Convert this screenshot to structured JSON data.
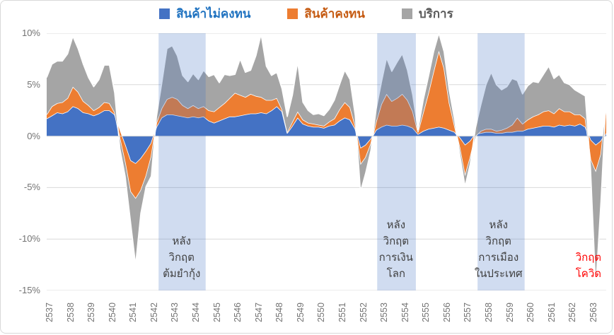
{
  "legend": {
    "items": [
      {
        "label": "สินค้าไม่คงทน",
        "swatch_color": "#4472C4",
        "text_color": "#1F72C0"
      },
      {
        "label": "สินค้าคงทน",
        "swatch_color": "#ED7D31",
        "text_color": "#C55A11"
      },
      {
        "label": "บริการ",
        "swatch_color": "#A5A5A5",
        "text_color": "#595959"
      }
    ]
  },
  "chart_data": {
    "type": "area",
    "stacked": true,
    "frequency": "quarterly",
    "x_start_year_be": 2537,
    "x_end_year_be": 2563,
    "categories": [
      "2537",
      "2538",
      "2539",
      "2540",
      "2541",
      "2542",
      "2543",
      "2544",
      "2545",
      "2546",
      "2547",
      "2548",
      "2549",
      "2550",
      "2551",
      "2552",
      "2553",
      "2554",
      "2555",
      "2556",
      "2557",
      "2558",
      "2559",
      "2560",
      "2561",
      "2562",
      "2563"
    ],
    "ylim": [
      -15,
      10
    ],
    "yticks": [
      {
        "label": "10%",
        "value": 10
      },
      {
        "label": "5%",
        "value": 5
      },
      {
        "label": "0%",
        "value": 0
      },
      {
        "label": "-5%",
        "value": -5
      },
      {
        "label": "-10%",
        "value": -10
      },
      {
        "label": "-15%",
        "value": -15
      }
    ],
    "grid": true,
    "legend_position": "top-center",
    "series": [
      {
        "name": "สินค้าไม่คงทน",
        "color": "#4472C4",
        "values": [
          1.7,
          2.0,
          2.3,
          2.2,
          2.4,
          2.9,
          2.7,
          2.3,
          2.2,
          2.0,
          2.2,
          2.5,
          2.5,
          2.1,
          0.5,
          -0.9,
          -2.4,
          -2.7,
          -2.2,
          -1.5,
          -0.7,
          0.9,
          1.8,
          2.1,
          2.1,
          2.0,
          1.9,
          1.8,
          1.9,
          1.8,
          1.9,
          1.5,
          1.3,
          1.5,
          1.7,
          1.9,
          1.9,
          2.0,
          2.1,
          2.2,
          2.2,
          2.3,
          2.2,
          2.5,
          2.9,
          2.4,
          0.3,
          1.0,
          1.8,
          1.2,
          1.0,
          0.9,
          0.9,
          0.8,
          1.0,
          1.1,
          1.5,
          1.8,
          1.6,
          0.7,
          -1.2,
          -0.9,
          -0.3,
          0.6,
          0.9,
          1.1,
          1.0,
          1.0,
          1.1,
          1.0,
          0.8,
          0.2,
          0.5,
          0.7,
          0.8,
          0.9,
          0.8,
          0.6,
          0.4,
          -0.2,
          -0.9,
          -0.5,
          0.2,
          0.3,
          0.4,
          0.4,
          0.3,
          0.3,
          0.4,
          0.4,
          0.5,
          0.5,
          0.7,
          0.8,
          0.9,
          1.0,
          1.0,
          0.9,
          1.1,
          1.0,
          1.1,
          1.0,
          1.2,
          0.9,
          -0.4,
          -0.9,
          -0.5,
          0.3
        ]
      },
      {
        "name": "สินค้าคงทน",
        "color": "#ED7D31",
        "values": [
          0.4,
          0.9,
          0.9,
          1.1,
          1.3,
          1.9,
          1.6,
          1.1,
          0.8,
          0.5,
          0.6,
          0.8,
          0.7,
          0.2,
          -0.8,
          -1.7,
          -3.0,
          -3.4,
          -3.1,
          -2.4,
          -1.3,
          0.4,
          0.9,
          1.5,
          1.7,
          1.6,
          1.1,
          0.9,
          1.1,
          0.9,
          1.0,
          1.0,
          1.1,
          1.3,
          1.5,
          1.8,
          2.3,
          2.0,
          1.7,
          1.9,
          1.7,
          1.5,
          1.3,
          1.0,
          0.8,
          0.2,
          0.1,
          0.4,
          0.6,
          0.4,
          0.3,
          0.3,
          0.2,
          0.2,
          0.4,
          0.6,
          1.1,
          1.5,
          1.2,
          0.3,
          -1.6,
          -1.2,
          -0.5,
          0.8,
          2.2,
          3.0,
          2.4,
          2.7,
          3.0,
          2.5,
          1.6,
          0.2,
          1.8,
          3.5,
          5.5,
          7.4,
          5.8,
          2.6,
          0.6,
          -1.0,
          -3.0,
          -1.6,
          -0.2,
          0.2,
          0.3,
          0.3,
          0.2,
          0.3,
          0.4,
          0.7,
          1.3,
          0.7,
          0.9,
          1.1,
          1.2,
          1.4,
          1.5,
          1.3,
          1.6,
          1.4,
          1.3,
          1.1,
          0.9,
          0.8,
          -1.9,
          -2.6,
          -1.3,
          2.5
        ]
      },
      {
        "name": "บริการ",
        "color": "#A5A5A5",
        "values": [
          3.6,
          4.1,
          4.1,
          4.0,
          4.3,
          4.9,
          4.2,
          3.6,
          2.7,
          2.3,
          2.7,
          3.6,
          3.7,
          1.9,
          -0.9,
          -1.3,
          -2.8,
          -6.4,
          -2.2,
          -1.0,
          -1.9,
          0.6,
          2.4,
          4.9,
          5.0,
          4.2,
          2.9,
          2.6,
          3.1,
          2.8,
          3.5,
          3.3,
          3.6,
          2.4,
          2.8,
          2.2,
          1.8,
          3.5,
          2.4,
          2.3,
          3.9,
          6.1,
          3.3,
          2.4,
          2.5,
          2.0,
          1.5,
          2.6,
          4.8,
          1.7,
          1.2,
          0.9,
          1.1,
          1.0,
          1.2,
          1.8,
          2.4,
          3.1,
          2.7,
          1.0,
          -2.6,
          -1.5,
          -0.6,
          1.2,
          2.1,
          3.5,
          2.9,
          3.5,
          3.9,
          2.9,
          1.6,
          0.2,
          1.2,
          1.6,
          1.9,
          1.7,
          1.6,
          1.2,
          0.6,
          -0.6,
          -1.0,
          -0.6,
          0.8,
          2.5,
          4.3,
          5.5,
          4.5,
          3.9,
          4.0,
          4.5,
          3.6,
          2.9,
          3.3,
          3.4,
          3.1,
          3.6,
          4.3,
          3.4,
          3.3,
          2.8,
          2.6,
          2.4,
          2.1,
          2.2,
          -0.8,
          -11.3,
          -4.5,
          0.9
        ]
      }
    ],
    "highlight_bands": [
      {
        "from_year_be": 2542.35,
        "to_year_be": 2544.6,
        "color": "rgba(68,114,196,0.25)",
        "label_lines": [
          "หลัง",
          "วิกฤต",
          "ต้มยำกุ้ง"
        ],
        "label_center_year_be": 2543.45
      },
      {
        "from_year_be": 2552.8,
        "to_year_be": 2554.65,
        "color": "rgba(68,114,196,0.25)",
        "label_lines": [
          "หลัง",
          "วิกฤต",
          "การเงิน",
          "โลก"
        ],
        "label_center_year_be": 2553.7
      },
      {
        "from_year_be": 2557.6,
        "to_year_be": 2559.85,
        "color": "rgba(68,114,196,0.25)",
        "label_lines": [
          "หลัง",
          "วิกฤต",
          "การเมือง",
          "ในประเทศ"
        ],
        "label_center_year_be": 2558.6
      }
    ],
    "annotations": [
      {
        "lines": [
          "วิกฤต",
          "โควิด"
        ],
        "color": "#FF0000",
        "center_year_be": 2562.9
      }
    ]
  },
  "style_colors": {
    "gridline": "#D9D9D9",
    "zero_line": "#D9D9D9",
    "tick_text": "#737373",
    "annotation_text": "#3F3F3F",
    "area_outline": "#FFFFFF"
  }
}
